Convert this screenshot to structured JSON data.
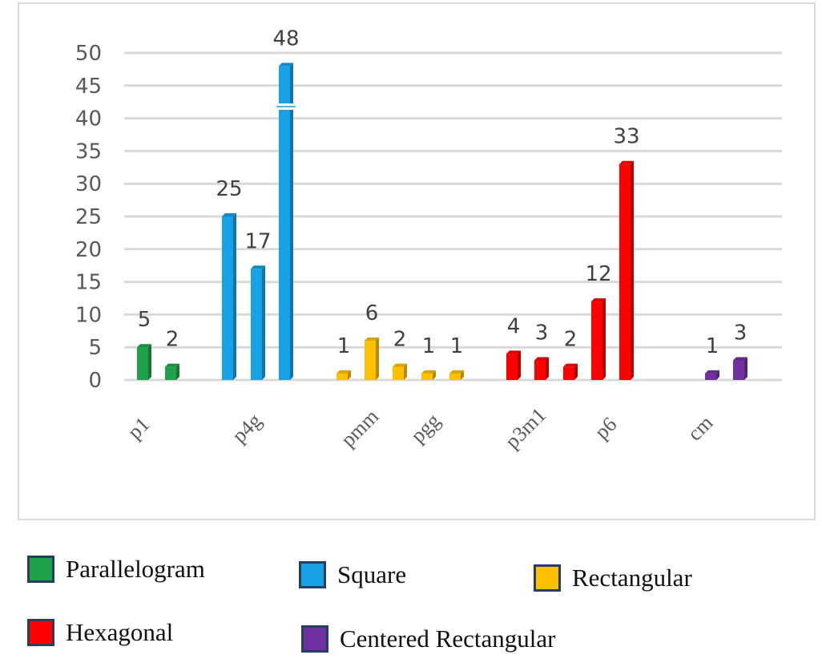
{
  "chart_data": {
    "type": "bar",
    "ylim": [
      0,
      50
    ],
    "yticks": [
      0,
      5,
      10,
      15,
      20,
      25,
      30,
      35,
      40,
      45,
      50
    ],
    "grid": true,
    "category_labels": [
      "p1",
      "p4g",
      "pmm",
      "pgg",
      "p3m1",
      "p6",
      "cm"
    ],
    "bars": [
      {
        "value": 5,
        "group": "Parallelogram",
        "label": "5"
      },
      {
        "value": 2,
        "group": "Parallelogram",
        "label": "2"
      },
      {
        "value": 25,
        "group": "Square",
        "label": "25"
      },
      {
        "value": 17,
        "group": "Square",
        "label": "17"
      },
      {
        "value": 48,
        "group": "Square",
        "label": "48"
      },
      {
        "value": 1,
        "group": "Rectangular",
        "label": "1"
      },
      {
        "value": 6,
        "group": "Rectangular",
        "label": "6"
      },
      {
        "value": 2,
        "group": "Rectangular",
        "label": "2"
      },
      {
        "value": 1,
        "group": "Rectangular",
        "label": "1"
      },
      {
        "value": 1,
        "group": "Rectangular",
        "label": "1"
      },
      {
        "value": 4,
        "group": "Hexagonal",
        "label": "4"
      },
      {
        "value": 3,
        "group": "Hexagonal",
        "label": "3"
      },
      {
        "value": 2,
        "group": "Hexagonal",
        "label": "2"
      },
      {
        "value": 12,
        "group": "Hexagonal",
        "label": "12"
      },
      {
        "value": 33,
        "group": "Hexagonal",
        "label": "33"
      },
      {
        "value": 1,
        "group": "Centered Rectangular",
        "label": "1"
      },
      {
        "value": 3,
        "group": "Centered Rectangular",
        "label": "3"
      }
    ],
    "legend": [
      {
        "name": "Parallelogram",
        "color": "#1fa34a"
      },
      {
        "name": "Square",
        "color": "#17a2e8"
      },
      {
        "name": "Rectangular",
        "color": "#ffc000"
      },
      {
        "name": "Hexagonal",
        "color": "#ff0000"
      },
      {
        "name": "Centered Rectangular",
        "color": "#7030a0"
      }
    ],
    "legend_placement": "bottom"
  }
}
